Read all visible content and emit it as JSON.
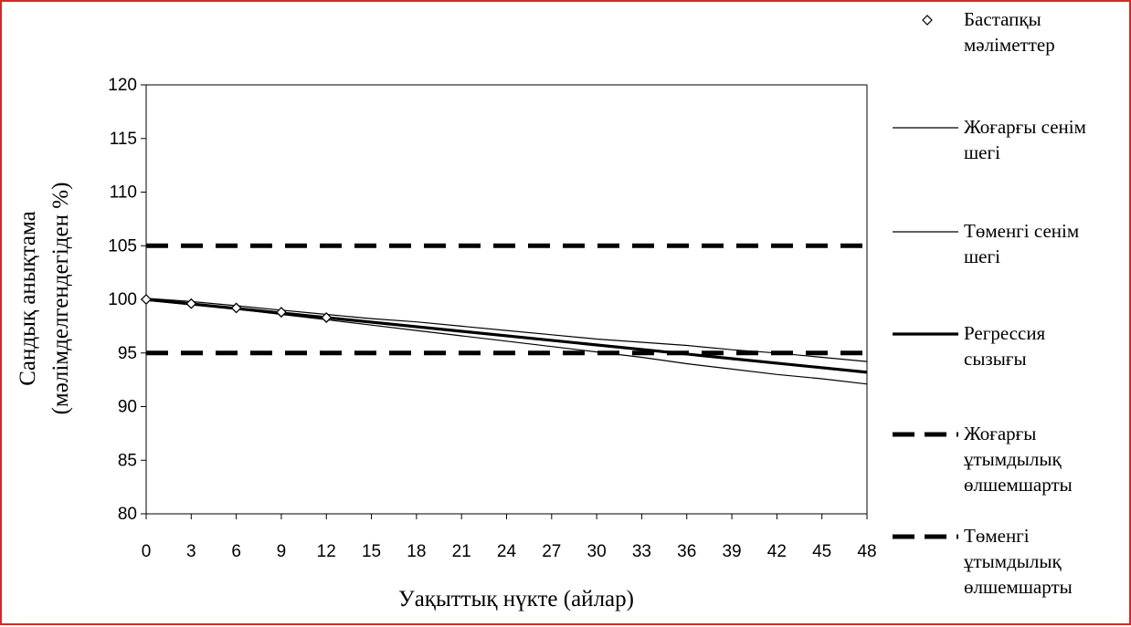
{
  "chart_data": {
    "type": "line",
    "title": "",
    "xlabel": "Уақыттық нүкте (айлар)",
    "ylabel": [
      "Сандық анықтама",
      "(мәлімделгендегіден %)"
    ],
    "xlim": [
      0,
      48
    ],
    "ylim": [
      80,
      120
    ],
    "x_ticks": [
      0,
      3,
      6,
      9,
      12,
      15,
      18,
      21,
      24,
      27,
      30,
      33,
      36,
      39,
      42,
      45,
      48
    ],
    "y_ticks": [
      80,
      85,
      90,
      95,
      100,
      105,
      110,
      115,
      120
    ],
    "grid": false,
    "legend_position": "right",
    "series": [
      {
        "name": "Бастапқы мәліметтер",
        "legend_lines": [
          "Бастапқы",
          "мәліметтер"
        ],
        "style": "markers-diamond",
        "color": "#000000",
        "x": [
          0,
          3,
          6,
          9,
          12
        ],
        "y": [
          100,
          99.6,
          99.2,
          98.8,
          98.3
        ]
      },
      {
        "name": "Жоғарғы сенім шегі",
        "legend_lines": [
          "Жоғарғы сенім",
          "шегі"
        ],
        "style": "thin-line",
        "color": "#000000",
        "x": [
          0,
          3,
          6,
          9,
          12,
          15,
          18,
          21,
          24,
          27,
          30,
          33,
          36,
          39,
          42,
          45,
          48
        ],
        "y": [
          100.1,
          99.8,
          99.4,
          99.0,
          98.6,
          98.2,
          97.9,
          97.5,
          97.1,
          96.7,
          96.3,
          96.0,
          95.7,
          95.3,
          95.0,
          94.6,
          94.2
        ]
      },
      {
        "name": "Төменгі сенім шегі",
        "legend_lines": [
          "Төменгі сенім",
          "шегі"
        ],
        "style": "thin-line",
        "color": "#000000",
        "x": [
          0,
          3,
          6,
          9,
          12,
          15,
          18,
          21,
          24,
          27,
          30,
          33,
          36,
          39,
          42,
          45,
          48
        ],
        "y": [
          99.9,
          99.5,
          99.1,
          98.6,
          98.1,
          97.6,
          97.1,
          96.6,
          96.1,
          95.6,
          95.1,
          94.6,
          94.0,
          93.5,
          93.0,
          92.6,
          92.1
        ]
      },
      {
        "name": "Регрессия сызығы",
        "legend_lines": [
          "Регрессия",
          "сызығы"
        ],
        "style": "thick-line",
        "color": "#000000",
        "x": [
          0,
          48
        ],
        "y": [
          100,
          93.2
        ]
      },
      {
        "name": "Жоғарғы ұтымдылық өлшемшарты",
        "legend_lines": [
          "Жоғарғы",
          "ұтымдылық",
          "өлшемшарты"
        ],
        "style": "dashed-line",
        "color": "#000000",
        "x": [
          0,
          48
        ],
        "y": [
          105,
          105
        ]
      },
      {
        "name": "Төменгі ұтымдылық өлшемшарты",
        "legend_lines": [
          "Төменгі",
          "ұтымдылық",
          "өлшемшарты"
        ],
        "style": "dashed-line",
        "color": "#000000",
        "x": [
          0,
          48
        ],
        "y": [
          95,
          95
        ]
      }
    ]
  }
}
